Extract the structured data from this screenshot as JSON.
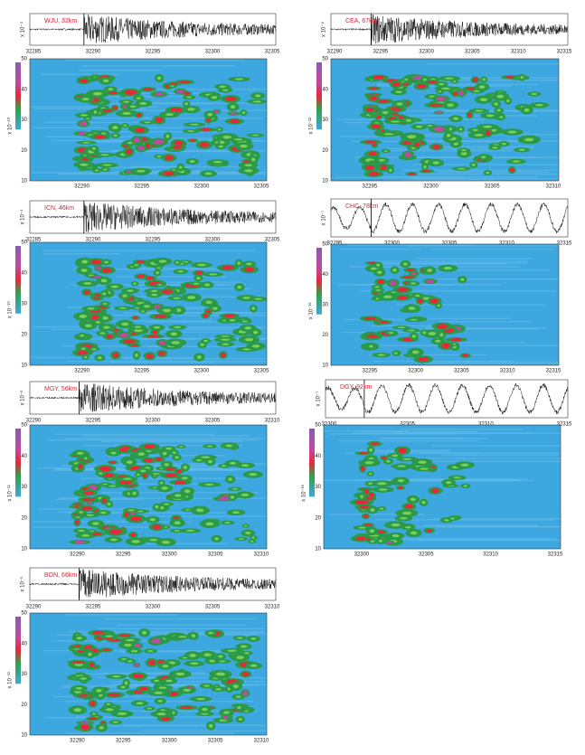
{
  "figure": {
    "panels": [
      {
        "station": "WJU, 32km",
        "wave_scale": "x 10⁻⁴",
        "wave_ticks": [
          "32285",
          "32290",
          "32295",
          "32300",
          "32305"
        ],
        "spec_scale": "x 10⁻¹⁰",
        "spec_xticks": [
          "32290",
          "32295",
          "32300",
          "32305"
        ],
        "spec_yticks": [
          "10",
          "20",
          "30",
          "40",
          "50"
        ]
      },
      {
        "station": "CEA, 67km",
        "wave_scale": "x 10⁻⁵",
        "wave_ticks": [
          "32290",
          "32295",
          "32300",
          "32305",
          "32310",
          "32315"
        ],
        "spec_scale": "x 10⁻¹²",
        "spec_xticks": [
          "32295",
          "32300",
          "32305",
          "32310"
        ],
        "spec_yticks": [
          "10",
          "20",
          "30",
          "40",
          "50"
        ]
      },
      {
        "station": "ICN, 46km",
        "wave_scale": "x 10⁻⁴",
        "wave_ticks": [
          "32285",
          "32290",
          "32295",
          "32300",
          "32305"
        ],
        "spec_scale": "x 10⁻¹⁰",
        "spec_xticks": [
          "32290",
          "32295",
          "32300",
          "32305"
        ],
        "spec_yticks": [
          "10",
          "20",
          "30",
          "40",
          "50"
        ]
      },
      {
        "station": "CHC, 78km",
        "wave_scale": "x 10⁻⁷",
        "wave_ticks": [
          "32295",
          "32300",
          "32305",
          "32310",
          "32315"
        ],
        "spec_scale": "x 10⁻¹⁶",
        "spec_xticks": [
          "32295",
          "32300",
          "32305",
          "32310",
          "32315"
        ],
        "spec_yticks": [
          "10",
          "20",
          "30",
          "40",
          "50"
        ]
      },
      {
        "station": "MGY, 56km",
        "wave_scale": "x 10⁻⁵",
        "wave_ticks": [
          "32290",
          "32295",
          "32300",
          "32305",
          "32310"
        ],
        "spec_scale": "x 10⁻¹¹",
        "spec_xticks": [
          "32290",
          "32295",
          "32300",
          "32305",
          "32310"
        ],
        "spec_yticks": [
          "10",
          "20",
          "30",
          "40",
          "50"
        ]
      },
      {
        "station": "DGY, 92km",
        "wave_scale": "x 10⁻⁷",
        "wave_ticks": [
          "32300",
          "32305",
          "32310",
          "32315"
        ],
        "spec_scale": "x 10⁻¹⁶",
        "spec_xticks": [
          "32300",
          "32305",
          "32310",
          "32315"
        ],
        "spec_yticks": [
          "10",
          "20",
          "30",
          "40",
          "50"
        ]
      },
      {
        "station": "BON, 66km",
        "wave_scale": "x 10⁻⁵",
        "wave_ticks": [
          "32290",
          "32295",
          "32300",
          "32305",
          "32310"
        ],
        "spec_scale": "x 10⁻¹¹",
        "spec_xticks": [
          "32290",
          "32295",
          "32300",
          "32305",
          "32310"
        ],
        "spec_yticks": [
          "10",
          "20",
          "30",
          "40",
          "50"
        ]
      }
    ]
  }
}
